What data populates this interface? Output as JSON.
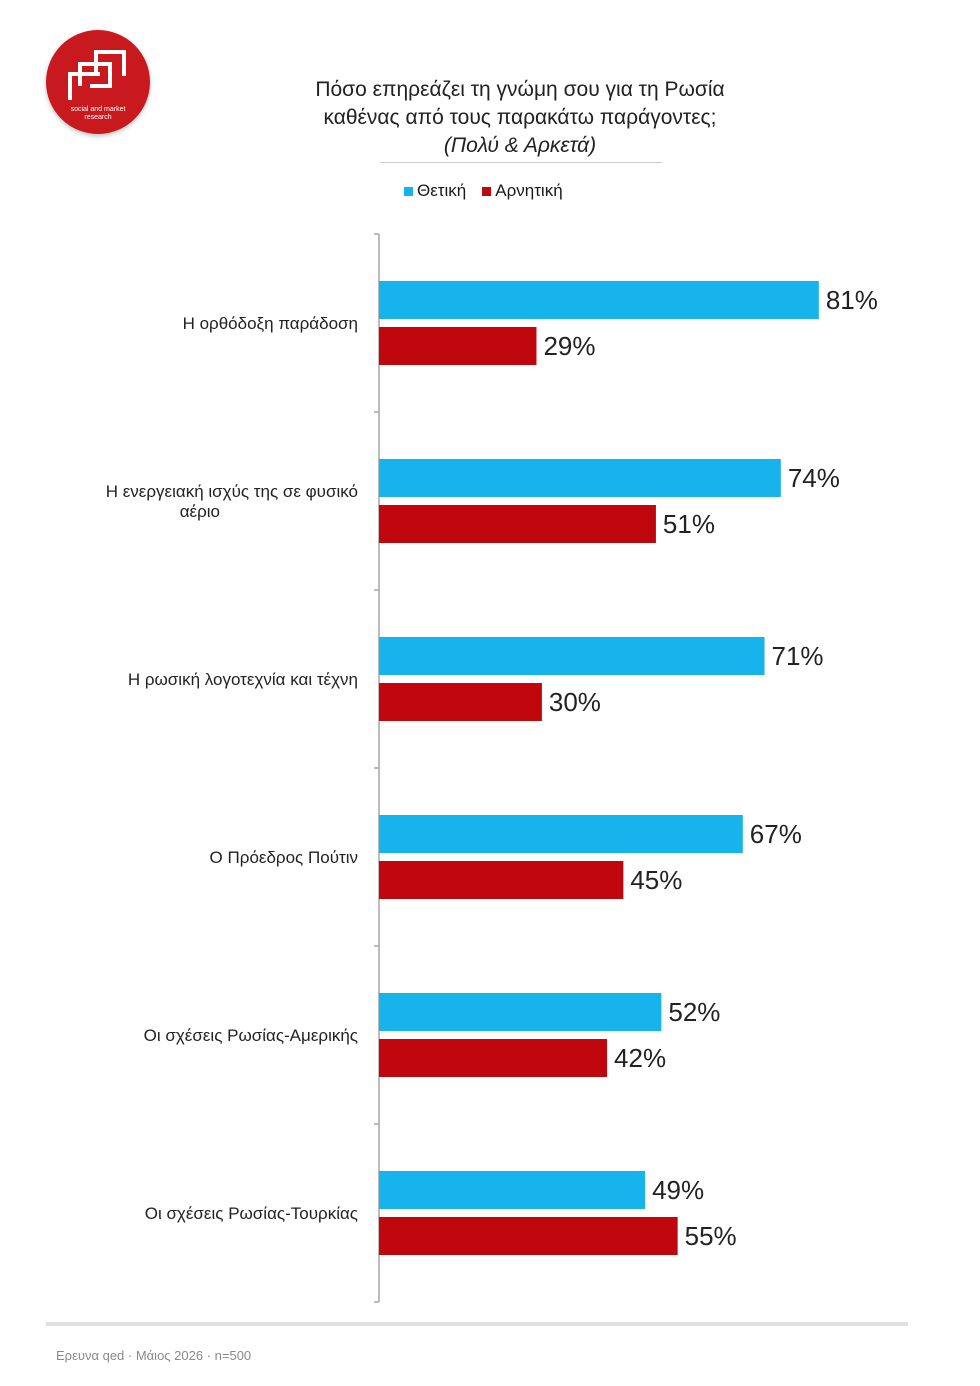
{
  "logo": {
    "tagline_1": "social and market",
    "tagline_2": "research",
    "color": "#c8191e"
  },
  "title": {
    "line1": "Πόσο επηρεάζει τη γνώμη σου για τη Ρωσία",
    "line2": "καθένας από τους παρακάτω παράγοντες;",
    "line3": "(Πολύ & Αρκετά)"
  },
  "chart_data": {
    "type": "bar",
    "orientation": "horizontal",
    "categories": [
      "Η ορθόδοξη παράδοση",
      "Η ενεργειακή ισχύς της σε φυσικό αέριο",
      "Η ρωσική λογοτεχνία και τέχνη",
      "Ο Πρόεδρος Πούτιν",
      "Οι σχέσεις Ρωσίας-Αμερικής",
      "Οι σχέσεις Ρωσίας-Τουρκίας"
    ],
    "series": [
      {
        "name": "Θετική",
        "color": "#17b3ec",
        "values": [
          81,
          74,
          71,
          67,
          52,
          49
        ]
      },
      {
        "name": "Αρνητική",
        "color": "#c0070d",
        "values": [
          29,
          51,
          30,
          45,
          42,
          55
        ]
      }
    ],
    "value_suffix": "%",
    "xlim": [
      0,
      100
    ],
    "legend_position": "top",
    "grid": false
  },
  "footer": {
    "source": "Ερευνα qed · Μάιος 2026 · n=500"
  }
}
